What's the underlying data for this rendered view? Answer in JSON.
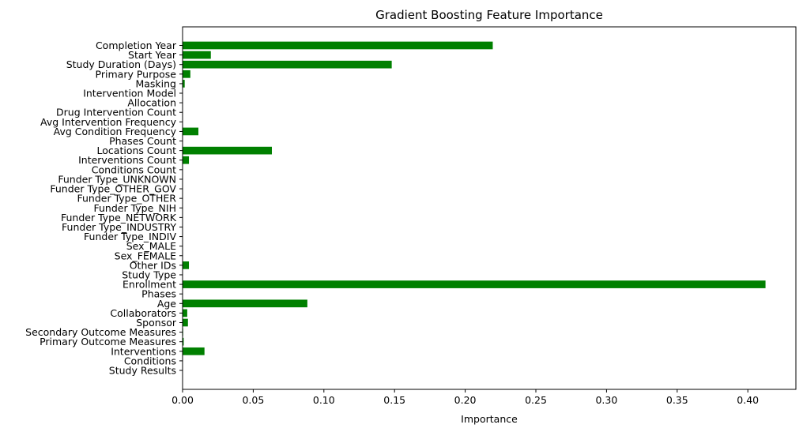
{
  "chart_data": {
    "type": "bar",
    "orientation": "horizontal",
    "title": "Gradient Boosting Feature Importance",
    "xlabel": "Importance",
    "ylabel": "",
    "xlim": [
      0,
      0.434
    ],
    "xticks": [
      "0.00",
      "0.05",
      "0.10",
      "0.15",
      "0.20",
      "0.25",
      "0.30",
      "0.35",
      "0.40"
    ],
    "grid": false,
    "bar_color": "#008000",
    "categories": [
      "Study Results",
      "Conditions",
      "Interventions",
      "Primary Outcome Measures",
      "Secondary Outcome Measures",
      "Sponsor",
      "Collaborators",
      "Age",
      "Phases",
      "Enrollment",
      "Study Type",
      "Other IDs",
      "Sex_FEMALE",
      "Sex_MALE",
      "Funder Type_INDIV",
      "Funder Type_INDUSTRY",
      "Funder Type_NETWORK",
      "Funder Type_NIH",
      "Funder Type_OTHER",
      "Funder Type_OTHER_GOV",
      "Funder Type_UNKNOWN",
      "Conditions Count",
      "Interventions Count",
      "Locations Count",
      "Phases Count",
      "Avg Condition Frequency",
      "Avg Intervention Frequency",
      "Drug Intervention Count",
      "Allocation",
      "Intervention Model",
      "Masking",
      "Primary Purpose",
      "Study Duration (Days)",
      "Start Year",
      "Completion Year"
    ],
    "values": [
      0.0,
      0.0,
      0.0155,
      0.0008,
      0.0004,
      0.0038,
      0.0033,
      0.0883,
      0.0,
      0.4125,
      0.0,
      0.0045,
      0.0,
      0.0,
      0.0,
      0.0,
      0.0,
      0.0,
      0.0,
      0.0,
      0.0,
      0.0,
      0.0045,
      0.0632,
      0.0,
      0.0112,
      0.0,
      0.0,
      0.0,
      0.0,
      0.0015,
      0.0055,
      0.148,
      0.02,
      0.2195
    ]
  }
}
